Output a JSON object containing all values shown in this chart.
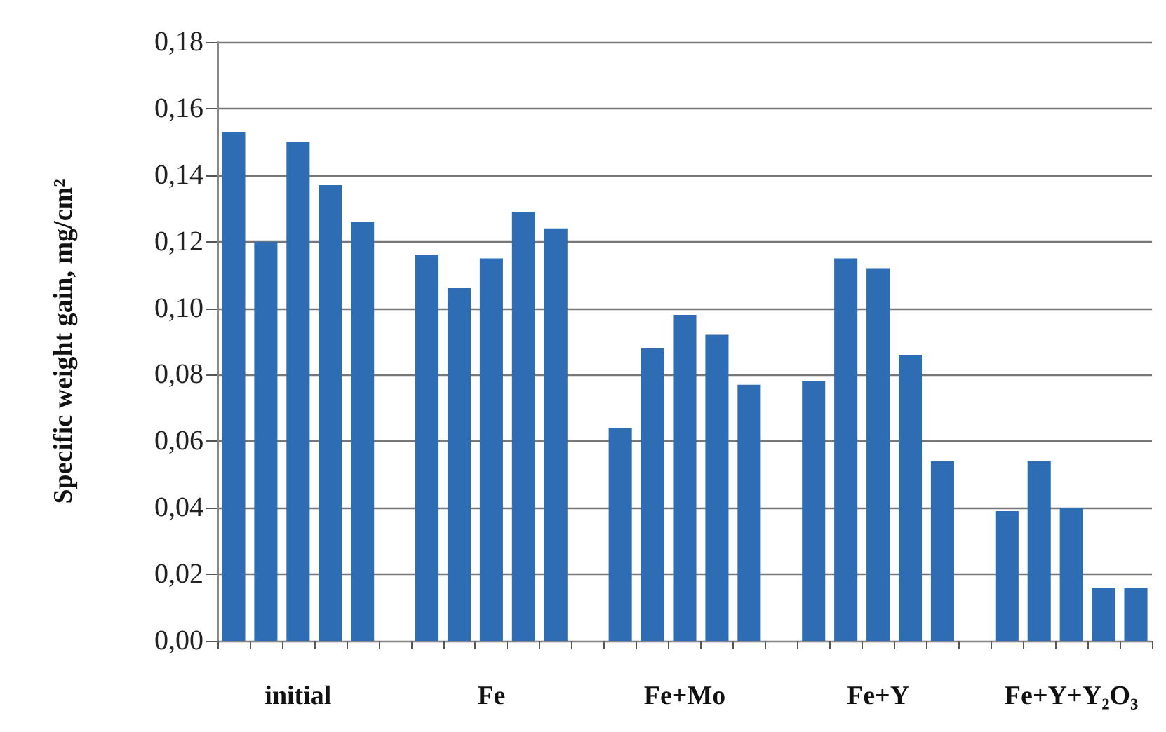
{
  "chart_data": {
    "type": "bar",
    "ylabel": "Specific weight gain, mg/cm²",
    "categories": [
      null,
      null,
      "initial",
      null,
      null,
      null,
      null,
      null,
      "Fe",
      null,
      null,
      null,
      null,
      null,
      "Fe+Mo",
      null,
      null,
      null,
      null,
      null,
      "Fe+Y",
      null,
      null,
      null,
      null,
      null,
      "Fe+Y+Y₂O₃",
      null,
      null
    ],
    "values": [
      0.153,
      0.12,
      0.15,
      0.137,
      0.126,
      null,
      0.116,
      0.106,
      0.115,
      0.129,
      0.124,
      null,
      0.064,
      0.088,
      0.098,
      0.092,
      0.077,
      null,
      0.078,
      0.115,
      0.112,
      0.086,
      0.054,
      null,
      0.039,
      0.054,
      0.04,
      0.016,
      0.016
    ],
    "color": "#2e6db4",
    "ylim": [
      0,
      0.18
    ],
    "yticks": [
      {
        "value": 0,
        "label": "0,00"
      },
      {
        "value": 0.02,
        "label": "0,02"
      },
      {
        "value": 0.04,
        "label": "0,04"
      },
      {
        "value": 0.06,
        "label": "0,06"
      },
      {
        "value": 0.08,
        "label": "0,08"
      },
      {
        "value": 0.1,
        "label": "0,10"
      },
      {
        "value": 0.12,
        "label": "0,12"
      },
      {
        "value": 0.14,
        "label": "0,14"
      },
      {
        "value": 0.16,
        "label": "0,16"
      },
      {
        "value": 0.18,
        "label": "0,18"
      }
    ],
    "grid": "y"
  }
}
